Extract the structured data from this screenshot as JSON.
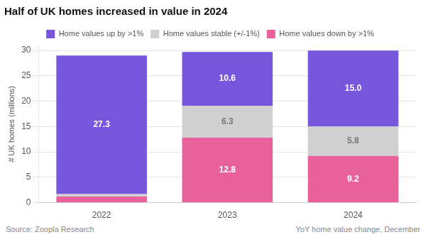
{
  "chart_data": {
    "type": "bar",
    "stacked": true,
    "title": "Half of UK homes increased in value in 2024",
    "ylabel": "# UK homes (millions)",
    "categories": [
      "2022",
      "2023",
      "2024"
    ],
    "series": [
      {
        "name": "Home values down by >1%",
        "color": "#e8619a",
        "values": [
          1.2,
          12.8,
          9.2
        ],
        "value_labels": [
          null,
          "12.8",
          "9.2"
        ]
      },
      {
        "name": "Home values stable (+/-1%)",
        "color": "#d0d0d0",
        "values": [
          0.5,
          6.3,
          5.8
        ],
        "value_labels": [
          null,
          "6.3",
          "5.8"
        ]
      },
      {
        "name": "Home values up by >1%",
        "color": "#7755dd",
        "values": [
          27.3,
          10.6,
          15.0
        ],
        "value_labels": [
          "27.3",
          "10.6",
          "15.0"
        ]
      }
    ],
    "ylim": [
      0,
      31
    ],
    "yticks": [
      0,
      5,
      10,
      15,
      20,
      25,
      30
    ],
    "grid": true,
    "legend": "top",
    "data_labels": true,
    "annotations": [
      "Source: Zoopla Research",
      "YoY home value change, December"
    ]
  }
}
